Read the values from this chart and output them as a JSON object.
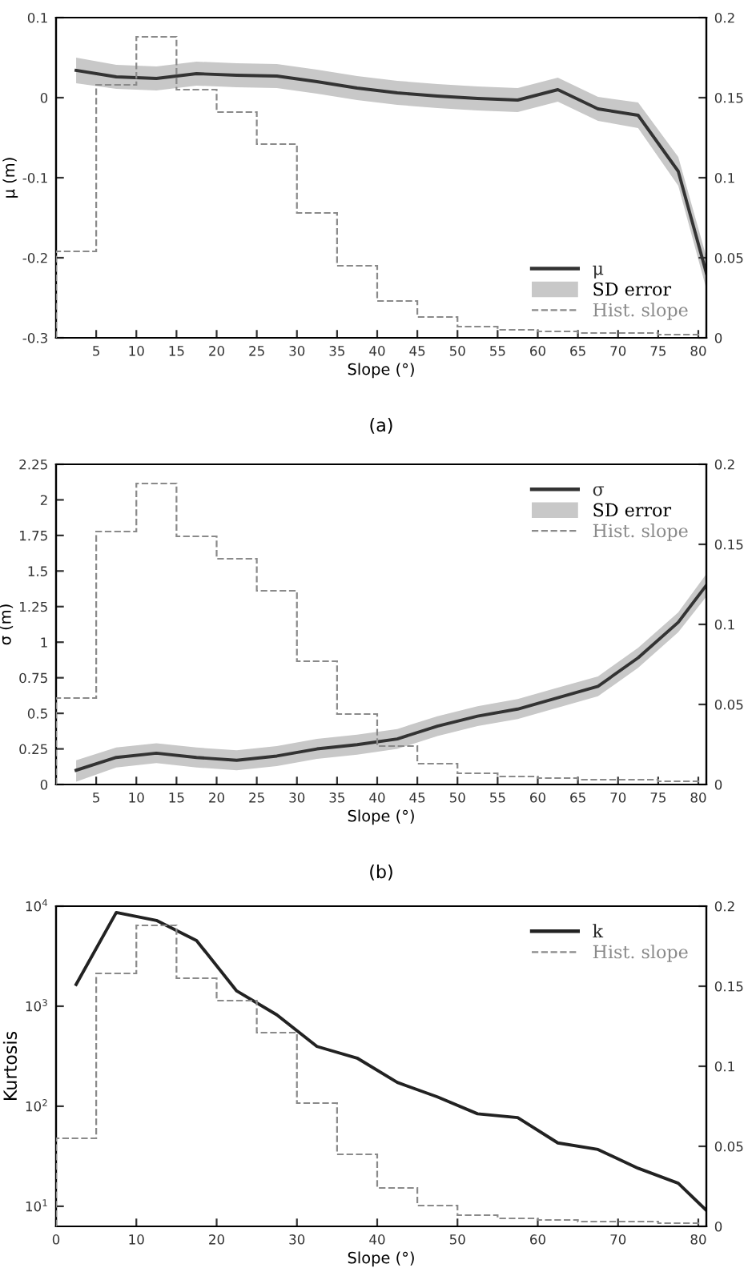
{
  "chart_data": [
    {
      "type": "line",
      "xlabel": "Slope (°)",
      "ylabel": "μ (m)",
      "annotations": [
        "SD error",
        "(a)"
      ],
      "legend": "bottom right",
      "grid": false,
      "xlim": [
        0,
        81
      ],
      "xticks": [
        5,
        10,
        15,
        20,
        25,
        30,
        35,
        40,
        45,
        50,
        55,
        60,
        65,
        70,
        75,
        80
      ],
      "ylim": [
        -0.3,
        0.1
      ],
      "yticks": [
        -0.3,
        -0.2,
        -0.1,
        0,
        0.1
      ],
      "y2lim": [
        0,
        0.2
      ],
      "y2ticks": [
        0,
        0.05,
        0.1,
        0.15,
        0.2
      ],
      "series": [
        {
          "name": "Hist. slope",
          "type": "histogram",
          "axis": "y2",
          "color": "#8a8a8a",
          "line_style": "dashed",
          "bins": [
            0,
            5,
            10,
            15,
            20,
            25,
            30,
            35,
            40,
            45,
            50,
            55,
            60,
            65,
            70,
            75,
            80
          ],
          "values": [
            0.054,
            0.158,
            0.188,
            0.155,
            0.141,
            0.121,
            0.078,
            0.045,
            0.023,
            0.013,
            0.007,
            0.005,
            0.004,
            0.003,
            0.003,
            0.002
          ]
        },
        {
          "name": "μ",
          "type": "line",
          "color": "#333333",
          "x": [
            2.5,
            7.5,
            12.5,
            17.5,
            22.5,
            27.5,
            32.5,
            37.5,
            42.5,
            47.5,
            52.5,
            57.5,
            62.5,
            67.5,
            72.5,
            77.5,
            81
          ],
          "values": [
            0.034,
            0.026,
            0.024,
            0.03,
            0.028,
            0.027,
            0.02,
            0.012,
            0.006,
            0.002,
            -0.001,
            -0.003,
            0.01,
            -0.014,
            -0.022,
            -0.092,
            -0.219
          ],
          "lower": [
            0.018,
            0.011,
            0.009,
            0.015,
            0.013,
            0.012,
            0.005,
            -0.003,
            -0.009,
            -0.013,
            -0.016,
            -0.018,
            -0.005,
            -0.029,
            -0.038,
            -0.11,
            -0.239
          ],
          "upper": [
            0.05,
            0.041,
            0.039,
            0.045,
            0.043,
            0.042,
            0.035,
            0.027,
            0.021,
            0.017,
            0.014,
            0.012,
            0.025,
            0.001,
            -0.006,
            -0.074,
            -0.199
          ]
        }
      ]
    },
    {
      "type": "line",
      "xlabel": "Slope (°)",
      "ylabel": "σ (m)",
      "annotations": [
        "SD error",
        "(b)"
      ],
      "legend": "top right",
      "grid": false,
      "xlim": [
        0,
        81
      ],
      "xticks": [
        5,
        10,
        15,
        20,
        25,
        30,
        35,
        40,
        45,
        50,
        55,
        60,
        65,
        70,
        75,
        80
      ],
      "ylim": [
        0,
        2.25
      ],
      "yticks": [
        0,
        0.25,
        0.5,
        0.75,
        1,
        1.25,
        1.5,
        1.75,
        2,
        2.25
      ],
      "y2lim": [
        0,
        0.2
      ],
      "y2ticks": [
        0,
        0.05,
        0.1,
        0.15,
        0.2
      ],
      "series": [
        {
          "name": "Hist. slope",
          "type": "histogram",
          "axis": "y2",
          "color": "#8a8a8a",
          "line_style": "dashed",
          "bins": [
            0,
            5,
            10,
            15,
            20,
            25,
            30,
            35,
            40,
            45,
            50,
            55,
            60,
            65,
            70,
            75,
            80
          ],
          "values": [
            0.054,
            0.158,
            0.188,
            0.155,
            0.141,
            0.121,
            0.077,
            0.044,
            0.024,
            0.013,
            0.007,
            0.005,
            0.004,
            0.003,
            0.003,
            0.002
          ]
        },
        {
          "name": "σ",
          "type": "line",
          "color": "#333333",
          "x": [
            2.5,
            7.5,
            12.5,
            17.5,
            22.5,
            27.5,
            32.5,
            37.5,
            42.5,
            47.5,
            52.5,
            57.5,
            62.5,
            67.5,
            72.5,
            77.5,
            81
          ],
          "values": [
            0.1,
            0.19,
            0.22,
            0.19,
            0.17,
            0.2,
            0.25,
            0.28,
            0.32,
            0.41,
            0.48,
            0.53,
            0.61,
            0.69,
            0.89,
            1.14,
            1.4
          ],
          "lower": [
            0.02,
            0.12,
            0.15,
            0.12,
            0.1,
            0.13,
            0.18,
            0.21,
            0.25,
            0.34,
            0.41,
            0.46,
            0.54,
            0.62,
            0.82,
            1.07,
            1.32
          ],
          "upper": [
            0.17,
            0.26,
            0.29,
            0.26,
            0.24,
            0.27,
            0.32,
            0.35,
            0.39,
            0.48,
            0.55,
            0.6,
            0.68,
            0.76,
            0.96,
            1.21,
            1.48
          ]
        }
      ]
    },
    {
      "type": "line",
      "xlabel": "Slope (°)",
      "ylabel": "Kurtosis",
      "legend": "top right",
      "grid": false,
      "log": "y",
      "xlim": [
        0,
        81
      ],
      "xticks": [
        0,
        10,
        20,
        30,
        40,
        50,
        60,
        70,
        80
      ],
      "ylim": [
        6.3,
        10000
      ],
      "yticks": [
        {
          "value": 10,
          "label": "10$^{1}$"
        },
        {
          "value": 100,
          "label": "10$^{2}$"
        },
        {
          "value": 1000,
          "label": "10$^{3}$"
        },
        {
          "value": 10000,
          "label": "10$^{4}$"
        }
      ],
      "y2lim": [
        0,
        0.2
      ],
      "y2ticks": [
        0,
        0.05,
        0.1,
        0.15,
        0.2
      ],
      "series": [
        {
          "name": "Hist. slope",
          "type": "histogram",
          "axis": "y2",
          "color": "#8a8a8a",
          "line_style": "dashed",
          "bins": [
            0,
            5,
            10,
            15,
            20,
            25,
            30,
            35,
            40,
            45,
            50,
            55,
            60,
            65,
            70,
            75,
            80
          ],
          "values": [
            0.055,
            0.158,
            0.188,
            0.155,
            0.141,
            0.121,
            0.077,
            0.045,
            0.024,
            0.013,
            0.007,
            0.005,
            0.004,
            0.003,
            0.003,
            0.002
          ]
        },
        {
          "name": "k",
          "type": "line",
          "color": "#222222",
          "x": [
            2.5,
            7.5,
            12.5,
            17.5,
            22.5,
            27.5,
            32.5,
            37.5,
            42.5,
            47.5,
            52.5,
            57.5,
            62.5,
            67.5,
            72.5,
            77.5,
            81
          ],
          "values": [
            1650,
            8650,
            7200,
            4530,
            1420,
            820,
            396,
            303,
            173,
            124,
            84,
            77,
            43,
            37,
            24,
            17,
            9.1
          ]
        }
      ]
    }
  ]
}
